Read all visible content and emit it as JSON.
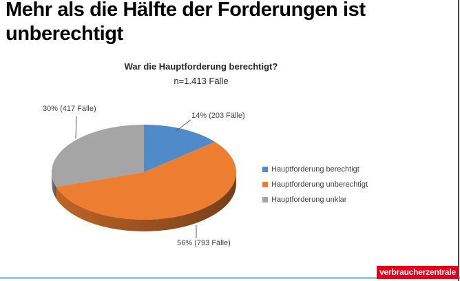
{
  "slide": {
    "title_line1": "Mehr als die Hälfte der Forderungen ist",
    "title_line2": "unberechtigt"
  },
  "chart": {
    "title": "War die Hauptforderung berechtigt?",
    "subtitle": "n=1.413 Fälle"
  },
  "chart_data": {
    "type": "pie",
    "style": "3d",
    "title": "War die Hauptforderung berechtigt?",
    "subtitle": "n=1.413 Fälle",
    "start_angle_deg": 0,
    "direction": "clockwise",
    "legend_position": "right",
    "slices": [
      {
        "label": "Hauptforderung berechtigt",
        "percent": 14,
        "cases": 203,
        "data_label": "14% (203 Fälle)",
        "color": "#4E8BC8"
      },
      {
        "label": "Hauptforderung unberechtigt",
        "percent": 56,
        "cases": 793,
        "data_label": "56% (793 Fälle)",
        "color": "#ED7D31"
      },
      {
        "label": "Hauptforderung unklar",
        "percent": 30,
        "cases": 417,
        "data_label": "30% (417 Fälle)",
        "color": "#A5A5A5"
      }
    ]
  },
  "footer": {
    "logo_text": "verbraucherzentrale",
    "logo_color": "#e2001a",
    "rule_color": "#a3c6e3"
  }
}
